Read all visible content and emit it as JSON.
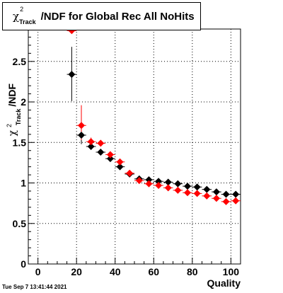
{
  "chart_data": {
    "type": "scatter",
    "title": {
      "symbol": "χ",
      "superscript": "2",
      "subscript": "Track",
      "text": "/NDF for Global Rec All NoHits"
    },
    "xlabel": "Quality",
    "ylabel": {
      "symbol": "χ",
      "superscript": "2",
      "subscript": "Track",
      "text": "/NDF"
    },
    "xlim": [
      -5,
      105
    ],
    "ylim": [
      0,
      2.9
    ],
    "x_ticks": [
      0,
      20,
      40,
      60,
      80,
      100
    ],
    "y_ticks": [
      0,
      0.5,
      1,
      1.5,
      2,
      2.5
    ],
    "grid": true,
    "legend": "none",
    "series": [
      {
        "color": "#000000",
        "marker": "diamond",
        "points": [
          {
            "x": 17.5,
            "y": 2.34,
            "ylow": 2.01,
            "yhigh": 2.68
          },
          {
            "x": 22.5,
            "y": 1.59,
            "ylow": 1.48,
            "yhigh": 1.69
          },
          {
            "x": 27.5,
            "y": 1.45,
            "ylow": 1.41,
            "yhigh": 1.49
          },
          {
            "x": 32.5,
            "y": 1.38,
            "ylow": 1.36,
            "yhigh": 1.4
          },
          {
            "x": 37.5,
            "y": 1.3,
            "ylow": 1.29,
            "yhigh": 1.31
          },
          {
            "x": 42.5,
            "y": 1.2,
            "ylow": 1.19,
            "yhigh": 1.21
          },
          {
            "x": 47.5,
            "y": 1.11,
            "ylow": 1.1,
            "yhigh": 1.12
          },
          {
            "x": 52.5,
            "y": 1.05,
            "ylow": 1.04,
            "yhigh": 1.06
          },
          {
            "x": 57.5,
            "y": 1.04,
            "ylow": 1.03,
            "yhigh": 1.05
          },
          {
            "x": 62.5,
            "y": 1.02,
            "ylow": 1.01,
            "yhigh": 1.03
          },
          {
            "x": 67.5,
            "y": 1.01,
            "ylow": 1.0,
            "yhigh": 1.02
          },
          {
            "x": 72.5,
            "y": 0.99,
            "ylow": 0.98,
            "yhigh": 1.0
          },
          {
            "x": 77.5,
            "y": 0.96,
            "ylow": 0.95,
            "yhigh": 0.97
          },
          {
            "x": 82.5,
            "y": 0.95,
            "ylow": 0.94,
            "yhigh": 0.96
          },
          {
            "x": 87.5,
            "y": 0.92,
            "ylow": 0.91,
            "yhigh": 0.93
          },
          {
            "x": 92.5,
            "y": 0.89,
            "ylow": 0.88,
            "yhigh": 0.9
          },
          {
            "x": 97.5,
            "y": 0.86,
            "ylow": 0.85,
            "yhigh": 0.87
          },
          {
            "x": 102.5,
            "y": 0.86,
            "ylow": 0.85,
            "yhigh": 0.87
          }
        ]
      },
      {
        "color": "#ff0000",
        "marker": "diamond",
        "points": [
          {
            "x": 17.5,
            "y": 2.88,
            "ylow": 2.86,
            "yhigh": 2.9
          },
          {
            "x": 22.5,
            "y": 1.71,
            "ylow": 1.53,
            "yhigh": 1.96
          },
          {
            "x": 27.5,
            "y": 1.51,
            "ylow": 1.46,
            "yhigh": 1.56
          },
          {
            "x": 32.5,
            "y": 1.49,
            "ylow": 1.47,
            "yhigh": 1.51
          },
          {
            "x": 37.5,
            "y": 1.35,
            "ylow": 1.34,
            "yhigh": 1.36
          },
          {
            "x": 42.5,
            "y": 1.26,
            "ylow": 1.25,
            "yhigh": 1.27
          },
          {
            "x": 47.5,
            "y": 1.12,
            "ylow": 1.11,
            "yhigh": 1.13
          },
          {
            "x": 52.5,
            "y": 1.03,
            "ylow": 1.02,
            "yhigh": 1.04
          },
          {
            "x": 57.5,
            "y": 0.99,
            "ylow": 0.98,
            "yhigh": 1.0
          },
          {
            "x": 62.5,
            "y": 0.97,
            "ylow": 0.96,
            "yhigh": 0.98
          },
          {
            "x": 67.5,
            "y": 0.94,
            "ylow": 0.93,
            "yhigh": 0.95
          },
          {
            "x": 72.5,
            "y": 0.91,
            "ylow": 0.9,
            "yhigh": 0.92
          },
          {
            "x": 77.5,
            "y": 0.88,
            "ylow": 0.87,
            "yhigh": 0.89
          },
          {
            "x": 82.5,
            "y": 0.87,
            "ylow": 0.86,
            "yhigh": 0.88
          },
          {
            "x": 87.5,
            "y": 0.84,
            "ylow": 0.83,
            "yhigh": 0.85
          },
          {
            "x": 92.5,
            "y": 0.81,
            "ylow": 0.8,
            "yhigh": 0.82
          },
          {
            "x": 97.5,
            "y": 0.77,
            "ylow": 0.76,
            "yhigh": 0.78
          },
          {
            "x": 102.5,
            "y": 0.78,
            "ylow": 0.77,
            "yhigh": 0.79
          }
        ]
      }
    ]
  },
  "footer": {
    "date_stamp": "Tue Sep  7 13:41:44 2021"
  }
}
